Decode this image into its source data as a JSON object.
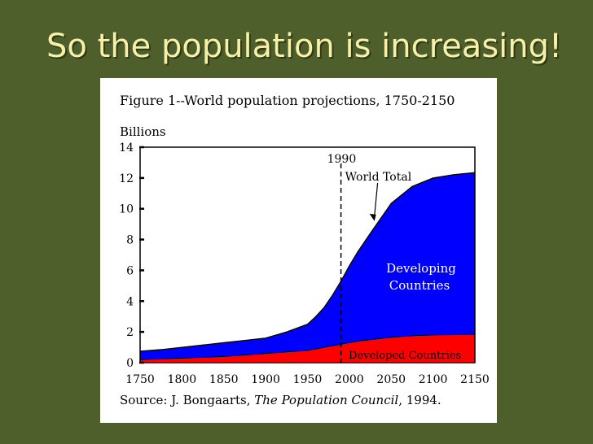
{
  "slide": {
    "title": "So the population is increasing!",
    "background_color": "#4f5f2c",
    "title_color": "#f7f0a8"
  },
  "chart_data": {
    "type": "area",
    "title": "Figure 1--World population projections",
    "title_years": ", 1750-2150",
    "ylabel": "Billions",
    "xlim": [
      1750,
      2150
    ],
    "ylim": [
      0,
      14
    ],
    "x_ticks": [
      "1750",
      "1800",
      "1850",
      "1900",
      "1950",
      "2000",
      "2050",
      "2100",
      "2150"
    ],
    "y_ticks": [
      "0",
      "2",
      "4",
      "6",
      "8",
      "10",
      "12",
      "14"
    ],
    "x": [
      1750,
      1775,
      1800,
      1825,
      1850,
      1875,
      1900,
      1925,
      1950,
      1960,
      1970,
      1980,
      1990,
      2000,
      2010,
      2025,
      2050,
      2075,
      2100,
      2125,
      2150
    ],
    "series": [
      {
        "name": "Developed Countries",
        "color": "#ff0000",
        "values": [
          0.2,
          0.25,
          0.3,
          0.35,
          0.4,
          0.5,
          0.6,
          0.7,
          0.8,
          0.9,
          1.0,
          1.1,
          1.2,
          1.3,
          1.4,
          1.5,
          1.65,
          1.75,
          1.8,
          1.82,
          1.85
        ]
      },
      {
        "name": "Developing Countries",
        "color": "#0000ff",
        "values": [
          0.55,
          0.6,
          0.7,
          0.8,
          0.9,
          0.95,
          1.0,
          1.3,
          1.7,
          2.1,
          2.6,
          3.3,
          4.1,
          5.0,
          5.8,
          6.9,
          8.7,
          9.7,
          10.2,
          10.4,
          10.5
        ]
      }
    ],
    "total_label": "World Total",
    "developing_label_line1": "Developing",
    "developing_label_line2": "Countries",
    "marker": {
      "x": 1990,
      "label": "1990"
    },
    "source_prefix": "Source: J. Bongaarts, ",
    "source_italic": "The Population Council",
    "source_suffix": ", 1994."
  }
}
